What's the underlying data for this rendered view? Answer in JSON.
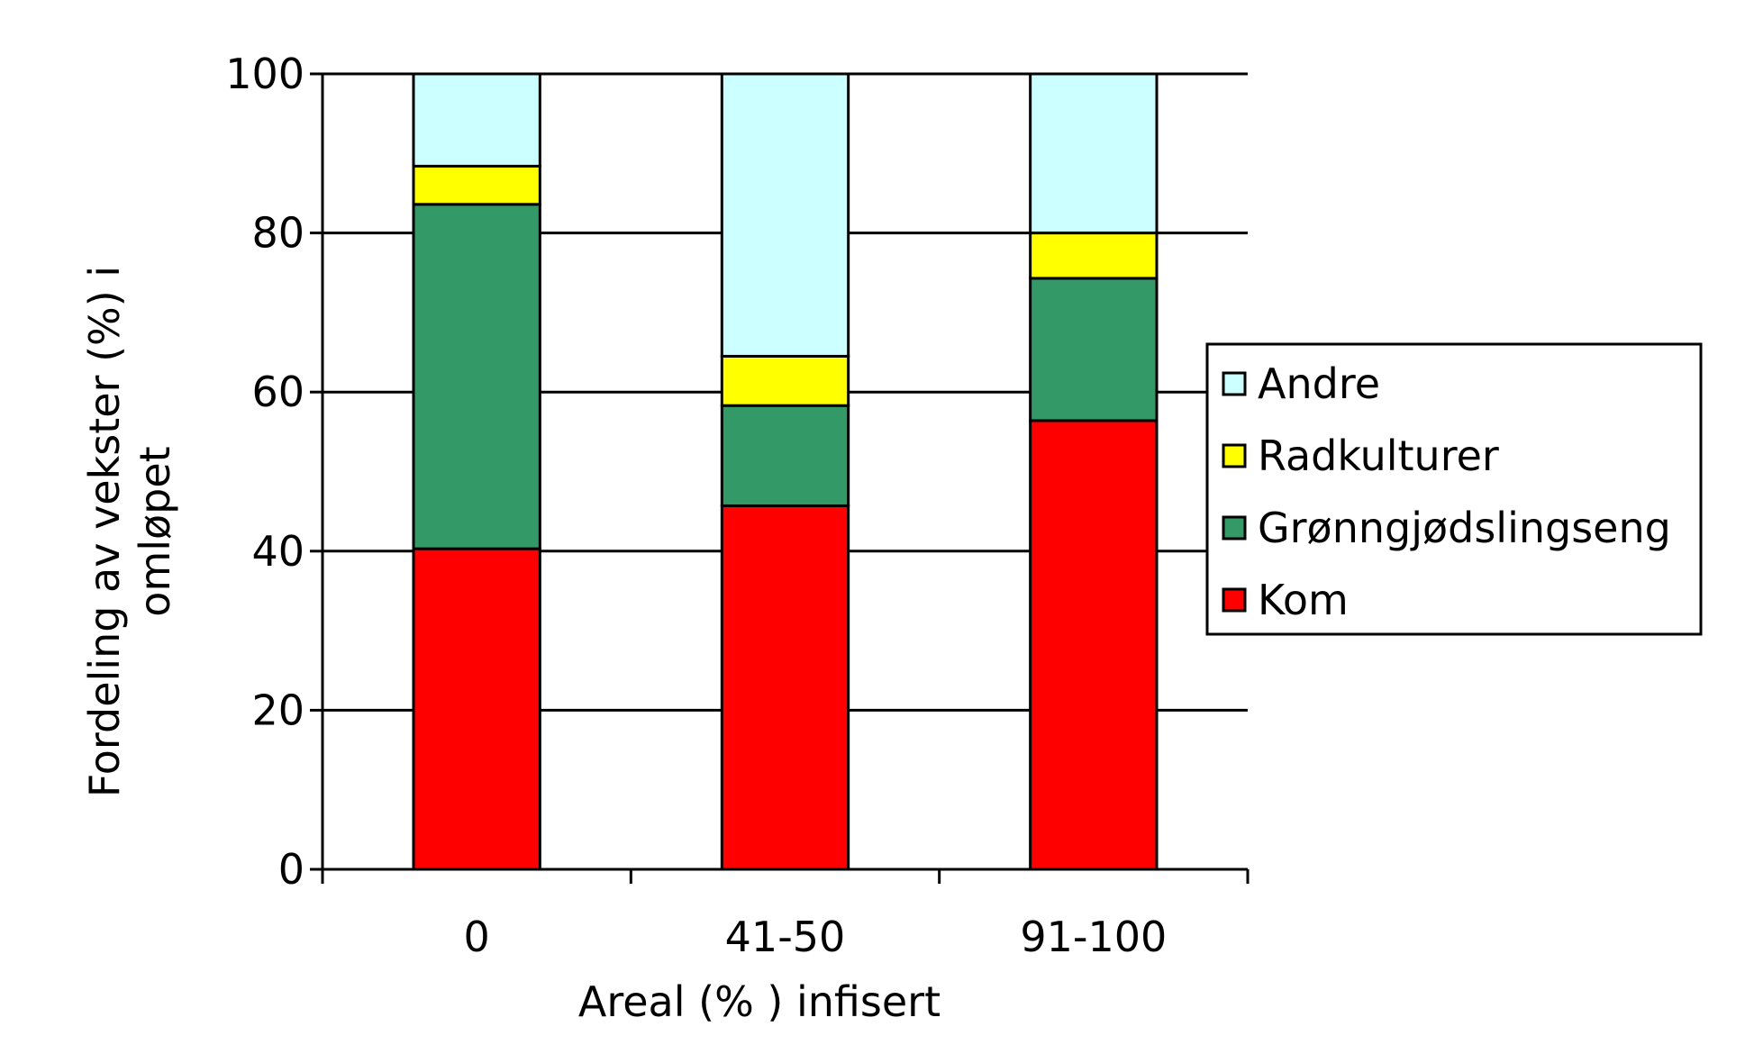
{
  "chart_data": {
    "type": "bar",
    "stacked": true,
    "categories": [
      "0",
      "41-50",
      "91-100"
    ],
    "series": [
      {
        "name": "Kom",
        "color": "#ff0000",
        "values": [
          40.3,
          45.7,
          56.4
        ]
      },
      {
        "name": "Grønngjødslingseng",
        "color": "#339966",
        "values": [
          43.3,
          12.6,
          17.9
        ]
      },
      {
        "name": "Radkulturer",
        "color": "#ffff00",
        "values": [
          4.8,
          6.2,
          5.7
        ]
      },
      {
        "name": "Andre",
        "color": "#ccffff",
        "values": [
          11.6,
          35.5,
          20.0
        ]
      }
    ],
    "legend_order": [
      "Andre",
      "Radkulturer",
      "Grønngjødslingseng",
      "Kom"
    ],
    "xlabel": "Areal (% ) infisert",
    "ylabel_lines": [
      "Fordeling av vekster (%) i",
      "omløpet"
    ],
    "ylim": [
      0,
      100
    ],
    "yticks": [
      0,
      20,
      40,
      60,
      80,
      100
    ],
    "grid": true,
    "legend_position": "right"
  }
}
